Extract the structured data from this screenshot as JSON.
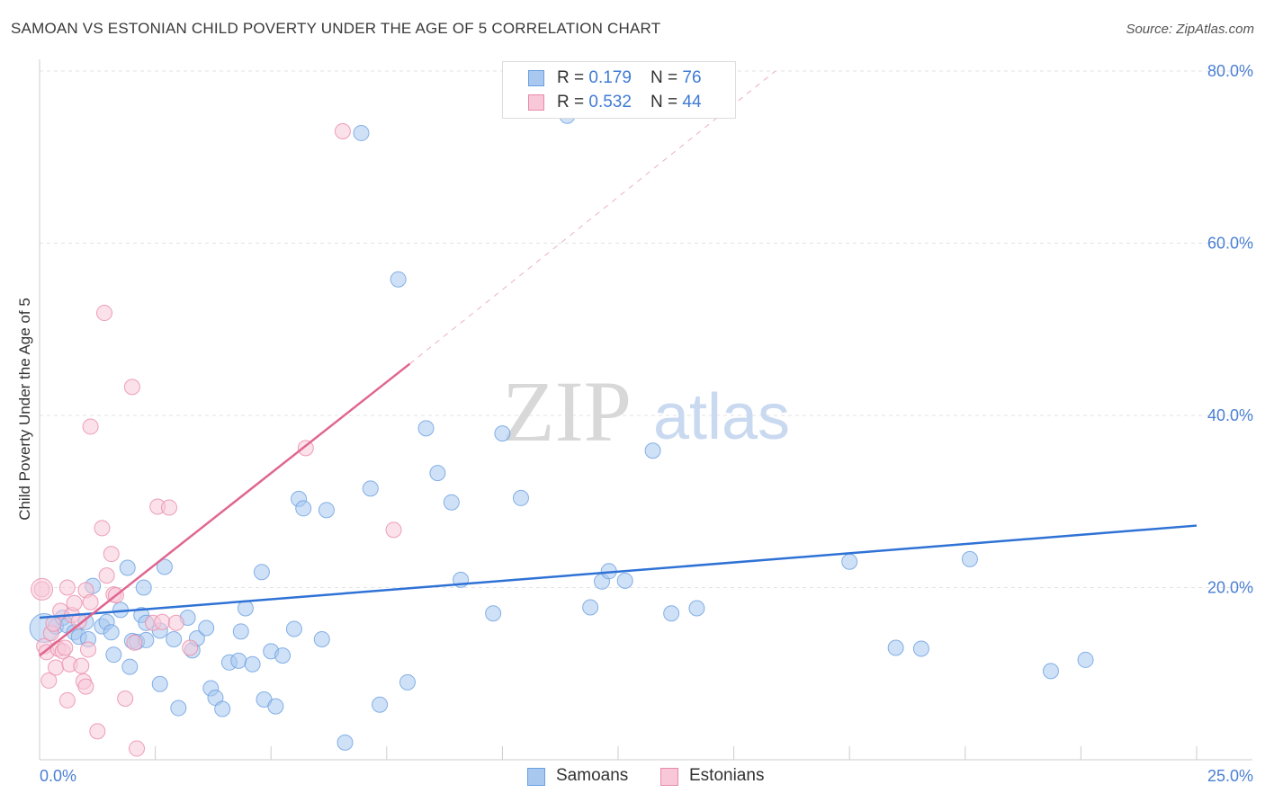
{
  "title": "SAMOAN VS ESTONIAN CHILD POVERTY UNDER THE AGE OF 5 CORRELATION CHART",
  "source": "Source: ZipAtlas.com",
  "watermark": {
    "zip": "ZIP",
    "atlas": "atlas"
  },
  "legend": {
    "rows": [
      {
        "r_label": "R = ",
        "r_value": "0.179",
        "n_label": "N = ",
        "n_value": "76",
        "color": "#a8c8f0",
        "border": "#6a9fe0"
      },
      {
        "r_label": "R = ",
        "r_value": "0.532",
        "n_label": "N = ",
        "n_value": "44",
        "color": "#f8c8d8",
        "border": "#e88aa8"
      }
    ]
  },
  "bottom_legend": [
    {
      "label": "Samoans",
      "color": "#a8c8f0",
      "border": "#6a9fe0"
    },
    {
      "label": "Estonians",
      "color": "#f8c8d8",
      "border": "#e88aa8"
    }
  ],
  "chart_data": {
    "type": "scatter",
    "title": "SAMOAN VS ESTONIAN CHILD POVERTY UNDER THE AGE OF 5 CORRELATION CHART",
    "xlabel": "",
    "ylabel": "Child Poverty Under the Age of 5",
    "xlim": [
      0,
      25
    ],
    "ylim": [
      0,
      80
    ],
    "x_tick_labels": [
      "0.0%",
      "25.0%"
    ],
    "y_ticks": [
      20,
      40,
      60,
      80
    ],
    "y_tick_labels": [
      "20.0%",
      "40.0%",
      "60.0%",
      "80.0%"
    ],
    "grid": true,
    "series": [
      {
        "name": "Samoans",
        "color": "#6a9fe0",
        "fill": "#a8c8f0",
        "points": [
          [
            0.1,
            15.3
          ],
          [
            0.35,
            15.5
          ],
          [
            0.5,
            16.5
          ],
          [
            0.6,
            15.6
          ],
          [
            0.75,
            14.8
          ],
          [
            0.85,
            14.3
          ],
          [
            1.0,
            16.0
          ],
          [
            1.05,
            14.0
          ],
          [
            1.15,
            20.2
          ],
          [
            1.35,
            15.5
          ],
          [
            1.45,
            16.0
          ],
          [
            1.55,
            14.8
          ],
          [
            1.6,
            12.2
          ],
          [
            1.75,
            17.4
          ],
          [
            1.9,
            22.3
          ],
          [
            1.95,
            10.8
          ],
          [
            2.0,
            13.8
          ],
          [
            2.1,
            13.7
          ],
          [
            2.2,
            16.8
          ],
          [
            2.25,
            20.0
          ],
          [
            2.3,
            15.9
          ],
          [
            2.3,
            13.9
          ],
          [
            2.6,
            15.0
          ],
          [
            2.6,
            8.8
          ],
          [
            2.7,
            22.4
          ],
          [
            2.9,
            14.0
          ],
          [
            3.0,
            6.0
          ],
          [
            3.2,
            16.5
          ],
          [
            3.3,
            12.7
          ],
          [
            3.4,
            14.1
          ],
          [
            3.6,
            15.3
          ],
          [
            3.7,
            8.3
          ],
          [
            3.8,
            7.2
          ],
          [
            3.95,
            5.9
          ],
          [
            4.1,
            11.3
          ],
          [
            4.3,
            11.5
          ],
          [
            4.35,
            14.9
          ],
          [
            4.45,
            17.6
          ],
          [
            4.6,
            11.1
          ],
          [
            4.8,
            21.8
          ],
          [
            4.85,
            7.0
          ],
          [
            5.0,
            12.6
          ],
          [
            5.1,
            6.2
          ],
          [
            5.25,
            12.1
          ],
          [
            5.5,
            15.2
          ],
          [
            5.6,
            30.3
          ],
          [
            5.7,
            29.2
          ],
          [
            6.1,
            14.0
          ],
          [
            6.2,
            29.0
          ],
          [
            6.6,
            2.0
          ],
          [
            6.95,
            72.8
          ],
          [
            7.15,
            31.5
          ],
          [
            7.35,
            6.4
          ],
          [
            7.75,
            55.8
          ],
          [
            7.95,
            9.0
          ],
          [
            8.35,
            38.5
          ],
          [
            8.6,
            33.3
          ],
          [
            8.9,
            29.9
          ],
          [
            9.1,
            20.9
          ],
          [
            9.8,
            17.0
          ],
          [
            10.0,
            37.9
          ],
          [
            10.4,
            30.4
          ],
          [
            11.4,
            74.8
          ],
          [
            11.9,
            17.7
          ],
          [
            12.15,
            20.7
          ],
          [
            12.3,
            21.9
          ],
          [
            12.65,
            20.8
          ],
          [
            13.25,
            35.9
          ],
          [
            13.65,
            17.0
          ],
          [
            14.2,
            17.6
          ],
          [
            17.5,
            23.0
          ],
          [
            18.5,
            13.0
          ],
          [
            19.05,
            12.9
          ],
          [
            20.1,
            23.3
          ],
          [
            21.85,
            10.3
          ],
          [
            22.6,
            11.6
          ]
        ]
      },
      {
        "name": "Estonians",
        "color": "#e88aa8",
        "fill": "#f8c8d8",
        "points": [
          [
            0.05,
            19.8
          ],
          [
            0.1,
            13.2
          ],
          [
            0.15,
            12.5
          ],
          [
            0.2,
            9.2
          ],
          [
            0.25,
            14.7
          ],
          [
            0.3,
            15.8
          ],
          [
            0.35,
            10.7
          ],
          [
            0.4,
            12.9
          ],
          [
            0.45,
            17.3
          ],
          [
            0.5,
            12.6
          ],
          [
            0.55,
            13.0
          ],
          [
            0.6,
            6.9
          ],
          [
            0.6,
            20.0
          ],
          [
            0.65,
            11.1
          ],
          [
            0.7,
            16.8
          ],
          [
            0.75,
            18.2
          ],
          [
            0.85,
            16.1
          ],
          [
            0.9,
            10.9
          ],
          [
            0.95,
            9.1
          ],
          [
            1.0,
            8.5
          ],
          [
            1.0,
            19.7
          ],
          [
            1.05,
            12.8
          ],
          [
            1.1,
            38.7
          ],
          [
            1.1,
            18.3
          ],
          [
            1.25,
            3.3
          ],
          [
            1.35,
            26.9
          ],
          [
            1.4,
            51.9
          ],
          [
            1.45,
            21.4
          ],
          [
            1.55,
            23.9
          ],
          [
            1.6,
            19.2
          ],
          [
            1.65,
            19.1
          ],
          [
            1.85,
            7.1
          ],
          [
            2.0,
            43.3
          ],
          [
            2.05,
            13.6
          ],
          [
            2.1,
            1.3
          ],
          [
            2.45,
            15.9
          ],
          [
            2.55,
            29.4
          ],
          [
            2.65,
            16.0
          ],
          [
            2.8,
            29.3
          ],
          [
            2.95,
            15.9
          ],
          [
            3.25,
            13.0
          ],
          [
            5.75,
            36.2
          ],
          [
            6.55,
            73.0
          ],
          [
            7.65,
            26.7
          ]
        ]
      }
    ],
    "trendlines": [
      {
        "series": "Samoans",
        "x": [
          0,
          25
        ],
        "y": [
          16.5,
          27.2
        ],
        "style": "solid"
      },
      {
        "series": "Estonians",
        "x": [
          0,
          8.0
        ],
        "y": [
          12.1,
          46.0
        ],
        "style": "solid"
      },
      {
        "series": "Estonians",
        "x": [
          8.0,
          15.9
        ],
        "y": [
          46.0,
          80.0
        ],
        "style": "dashed"
      }
    ]
  }
}
